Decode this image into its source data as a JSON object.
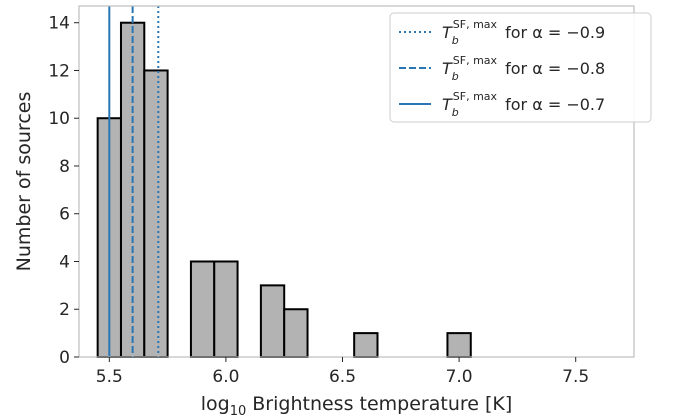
{
  "chart_data": {
    "type": "bar",
    "bins": [
      {
        "start": 5.45,
        "end": 5.55,
        "count": 10
      },
      {
        "start": 5.55,
        "end": 5.65,
        "count": 14
      },
      {
        "start": 5.65,
        "end": 5.75,
        "count": 12
      },
      {
        "start": 5.75,
        "end": 5.85,
        "count": 0
      },
      {
        "start": 5.85,
        "end": 5.95,
        "count": 4
      },
      {
        "start": 5.95,
        "end": 6.05,
        "count": 4
      },
      {
        "start": 6.05,
        "end": 6.15,
        "count": 0
      },
      {
        "start": 6.15,
        "end": 6.25,
        "count": 3
      },
      {
        "start": 6.25,
        "end": 6.35,
        "count": 2
      },
      {
        "start": 6.35,
        "end": 6.45,
        "count": 0
      },
      {
        "start": 6.45,
        "end": 6.55,
        "count": 0
      },
      {
        "start": 6.55,
        "end": 6.65,
        "count": 1
      },
      {
        "start": 6.65,
        "end": 6.75,
        "count": 0
      },
      {
        "start": 6.75,
        "end": 6.85,
        "count": 0
      },
      {
        "start": 6.85,
        "end": 6.95,
        "count": 0
      },
      {
        "start": 6.95,
        "end": 7.05,
        "count": 1
      }
    ],
    "xlabel": "log",
    "xlabel_sub": "10",
    "xlabel_rest": " Brightness temperature [K]",
    "ylabel": "Number of sources",
    "xlim": [
      5.37,
      7.75
    ],
    "ylim": [
      0,
      14.7
    ],
    "xticks": [
      5.5,
      6.0,
      6.5,
      7.0,
      7.5
    ],
    "xtick_labels": [
      "5.5",
      "6.0",
      "6.5",
      "7.0",
      "7.5"
    ],
    "yticks": [
      0,
      2,
      4,
      6,
      8,
      10,
      12,
      14
    ],
    "ytick_labels": [
      "0",
      "2",
      "4",
      "6",
      "8",
      "10",
      "12",
      "14"
    ],
    "bar_color": "#b3b3b3",
    "edge_color": "#000000",
    "line_color": "#2a76b4",
    "vlines": [
      {
        "x": 5.71,
        "style": "dotted",
        "label_T": "T",
        "label_sub": "b",
        "label_sup": "SF, max",
        "label_rest": " for α = −0.9"
      },
      {
        "x": 5.6,
        "style": "dashed",
        "label_T": "T",
        "label_sub": "b",
        "label_sup": "SF, max",
        "label_rest": " for α = −0.8"
      },
      {
        "x": 5.5,
        "style": "solid",
        "label_T": "T",
        "label_sub": "b",
        "label_sup": "SF, max",
        "label_rest": " for α = −0.7"
      }
    ],
    "legend_position": "top-right",
    "grid": false
  }
}
